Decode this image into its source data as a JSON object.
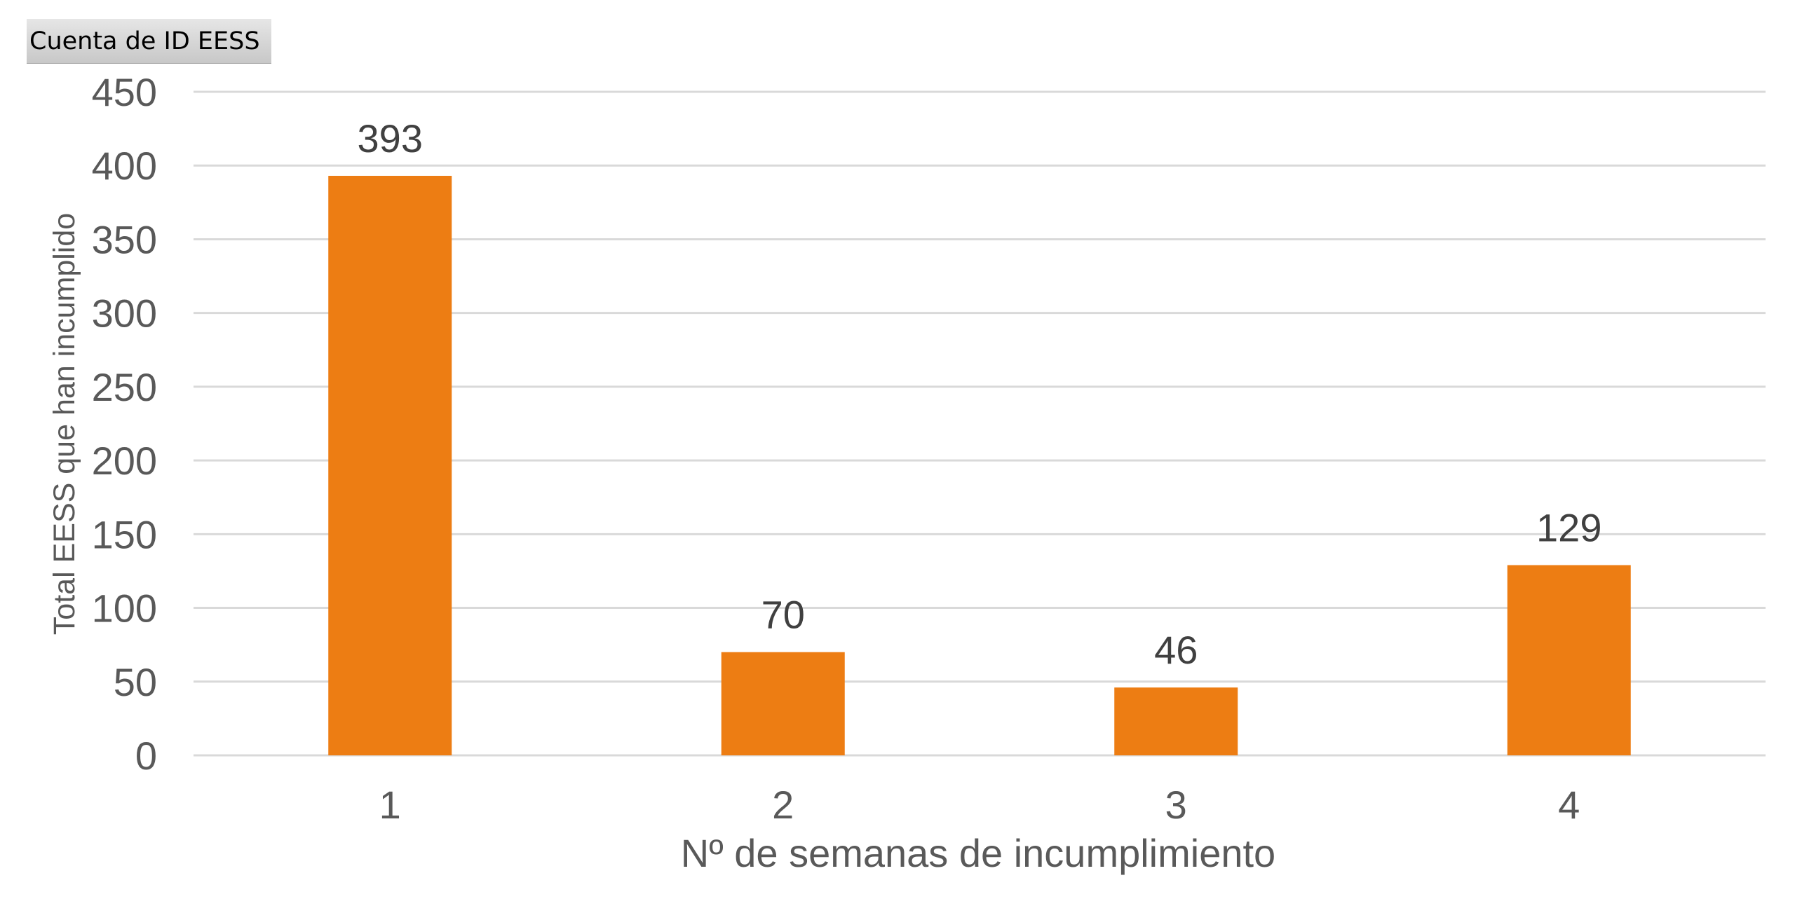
{
  "field_button": {
    "label": "Cuenta de ID EESS"
  },
  "chart_data": {
    "type": "bar",
    "categories": [
      "1",
      "2",
      "3",
      "4"
    ],
    "values": [
      393,
      70,
      46,
      129
    ],
    "title": "",
    "xlabel": "Nº de semanas de incumplimiento",
    "ylabel": "Total EESS que han incumplido",
    "ylim": [
      0,
      450
    ],
    "yticks": [
      0,
      50,
      100,
      150,
      200,
      250,
      300,
      350,
      400,
      450
    ],
    "grid": true,
    "legend": "none",
    "data_labels": true,
    "bar_color": "#ED7D13",
    "gridline_color": "#D9D9D9"
  }
}
